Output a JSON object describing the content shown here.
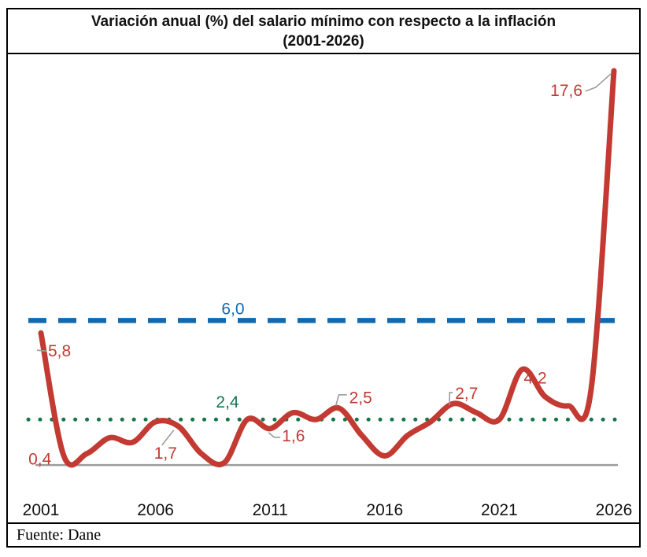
{
  "title": {
    "line1": "Variación anual (%) del salario mínimo con respecto a la inflación",
    "line2": "(2001-2026)"
  },
  "source": "Fuente: Dane",
  "chart_data": {
    "type": "line",
    "title": "Variación anual (%) del salario mínimo con respecto a la inflación",
    "subtitle": "(2001-2026)",
    "x": [
      2001,
      2002,
      2003,
      2004,
      2005,
      2006,
      2007,
      2008,
      2009,
      2010,
      2011,
      2012,
      2013,
      2014,
      2015,
      2016,
      2017,
      2018,
      2019,
      2020,
      2021,
      2022,
      2023,
      2024,
      2025,
      2026
    ],
    "series": [
      {
        "name": "Variación anual (%) del salario mínimo con respecto a la inflación",
        "color": "#c23a32",
        "values": [
          5.8,
          0.4,
          0.5,
          1.2,
          1.0,
          1.9,
          1.7,
          0.5,
          0.1,
          2.0,
          1.6,
          2.3,
          2.0,
          2.5,
          1.3,
          0.4,
          1.3,
          1.9,
          2.7,
          2.3,
          2.0,
          4.2,
          3.0,
          2.6,
          3.3,
          17.6
        ]
      }
    ],
    "reference_lines": [
      {
        "label": "6,0",
        "value": 6.0,
        "style": "dashed",
        "color": "#1169b0"
      },
      {
        "label": "2,4",
        "value": 2.4,
        "style": "dotted",
        "color": "#16774a"
      }
    ],
    "annotations": [
      {
        "year": 2001,
        "value": 5.8,
        "label": "5,8"
      },
      {
        "year": 2002,
        "value": 0.4,
        "label": "0,4"
      },
      {
        "year": 2007,
        "value": 1.7,
        "label": "1,7"
      },
      {
        "year": 2011,
        "value": 1.6,
        "label": "1,6"
      },
      {
        "year": 2014,
        "value": 2.5,
        "label": "2,5"
      },
      {
        "year": 2019,
        "value": 2.7,
        "label": "2,7"
      },
      {
        "year": 2022,
        "value": 4.2,
        "label": "4,2"
      },
      {
        "year": 2026,
        "value": 17.6,
        "label": "17,6"
      }
    ],
    "x_ticks": [
      2001,
      2006,
      2011,
      2016,
      2021,
      2026
    ],
    "x_tick_labels": [
      "2001",
      "2006",
      "2011",
      "2016",
      "2021",
      "2026"
    ],
    "axis_color": "#9c9c9c",
    "callout_line_color": "#9c9c9c",
    "ylim": [
      0,
      18
    ],
    "grid": false,
    "legend": "none"
  }
}
